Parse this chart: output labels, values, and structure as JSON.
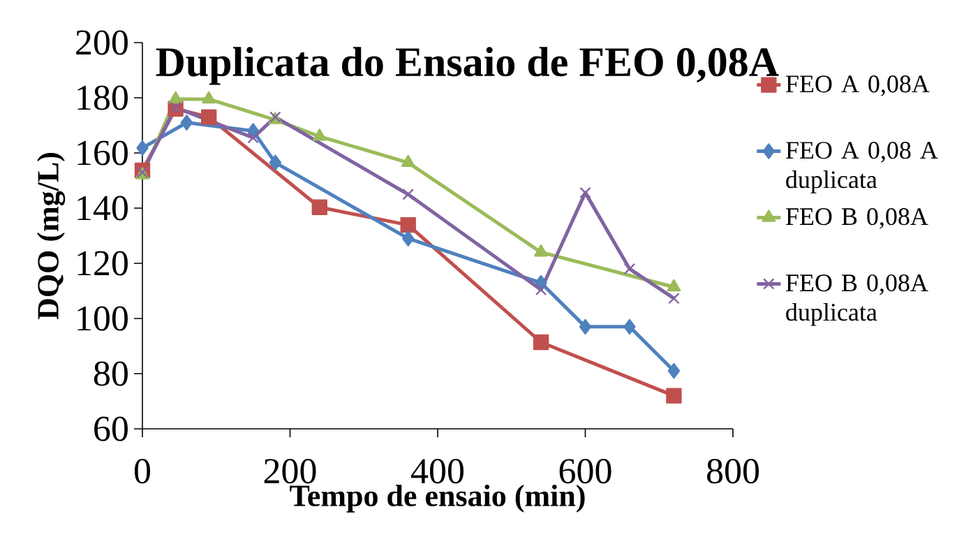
{
  "chart_data": {
    "type": "line",
    "title": "Duplicata do Ensaio de FEO 0,08A",
    "xlabel": "Tempo de ensaio (min)",
    "ylabel": "DQO (mg/L)",
    "xlim": [
      0,
      800
    ],
    "ylim": [
      60,
      200
    ],
    "xticks": [
      0,
      200,
      400,
      600,
      800
    ],
    "yticks": [
      60,
      80,
      100,
      120,
      140,
      160,
      180,
      200
    ],
    "grid": false,
    "legend": "right",
    "line_style": "solid",
    "series": [
      {
        "name": "FEO A 0,08A",
        "color": "#c0504d",
        "marker": "square",
        "x": [
          0,
          45,
          90,
          240,
          360,
          540,
          720
        ],
        "values": [
          153.7,
          176,
          173,
          140.3,
          133.9,
          91.4,
          72
        ]
      },
      {
        "name": "FEO A 0,08 A duplicata",
        "color": "#4f81bd",
        "marker": "diamond",
        "x": [
          0,
          60,
          150,
          180,
          360,
          540,
          600,
          660,
          720
        ],
        "values": [
          161.8,
          171,
          168,
          156.5,
          129,
          112.9,
          97,
          97,
          81
        ]
      },
      {
        "name": "FEO B 0,08A",
        "color": "#9bbb59",
        "marker": "triangle",
        "x": [
          0,
          45,
          90,
          180,
          240,
          360,
          540,
          720
        ],
        "values": [
          152,
          179.5,
          179.5,
          172,
          166,
          156.5,
          124,
          111.4
        ]
      },
      {
        "name": "FEO B 0,08A duplicata",
        "color": "#8064a2",
        "marker": "cross",
        "x": [
          0,
          45,
          150,
          180,
          360,
          540,
          600,
          660,
          720
        ],
        "values": [
          153,
          176.5,
          165.5,
          173,
          145,
          110.4,
          145.6,
          118,
          107.3
        ]
      }
    ]
  }
}
